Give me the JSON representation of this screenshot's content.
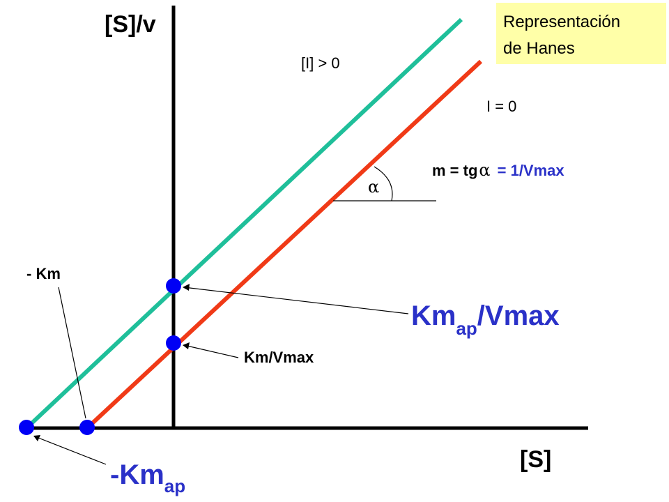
{
  "title_box": {
    "line1": "Representación",
    "line2": "de Hanes",
    "bg_color": "#ffffa8"
  },
  "axes": {
    "y_label": "[S]/v",
    "x_label": "[S]"
  },
  "lines": {
    "inhibited": {
      "label": "[I] > 0",
      "color": "#1fbf9a"
    },
    "uninhibited": {
      "label": "I = 0",
      "color": "#f03a17"
    }
  },
  "slope": {
    "lhs": "m = tg",
    "alpha": "α",
    "rhs": "= 1/Vmax"
  },
  "angle_label": "α",
  "labels": {
    "neg_km": "- Km",
    "km_vmax": "Km/Vmax",
    "kmap_vmax_main": "Km",
    "kmap_vmax_sub": "ap",
    "kmap_vmax_tail": "/Vmax",
    "neg_kmap_main": "-Km",
    "neg_kmap_sub": "ap"
  },
  "colors": {
    "point": "#0000f5",
    "highlight_text": "#2a31c8"
  }
}
